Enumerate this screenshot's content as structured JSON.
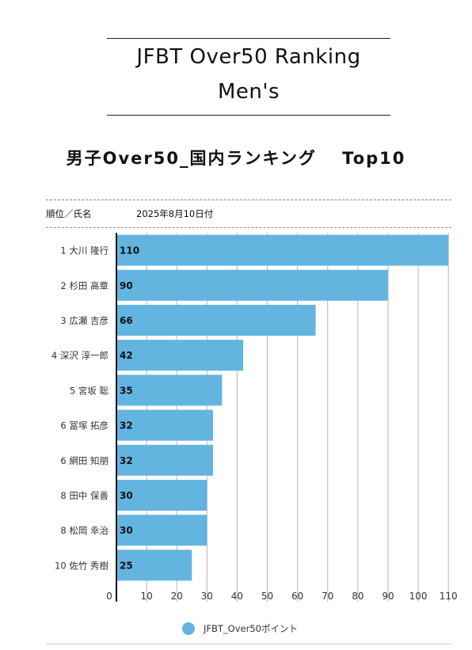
{
  "header": {
    "title_line1": "JFBT Over50 Ranking",
    "title_line2": "Men's",
    "subtitle": "男子Over50_国内ランキング　 Top10",
    "column_label": "順位／氏名",
    "date": "2025年8月10日付"
  },
  "legend": {
    "label": "JFBT_Over50ポイント"
  },
  "colors": {
    "bar": "#63b5e0",
    "accent": "#63b5e0"
  },
  "chart_data": {
    "type": "bar",
    "orientation": "horizontal",
    "categories": [
      "1 大川 隆行",
      "2 杉田 高章",
      "3 広瀬 吉彦",
      "4 深沢 淳一郎",
      "5 宮坂 聡",
      "6 冨塚 拓彦",
      "6 網田 知朋",
      "8 田中 保善",
      "8 松岡 幸治",
      "10 佐竹 秀樹"
    ],
    "series": [
      {
        "name": "JFBT_Over50ポイント",
        "values": [
          110,
          90,
          66,
          42,
          35,
          32,
          32,
          30,
          30,
          25
        ]
      }
    ],
    "x_ticks": [
      0,
      10,
      20,
      30,
      40,
      50,
      60,
      70,
      80,
      90,
      100,
      110
    ],
    "xlim": [
      0,
      111
    ],
    "grid": true,
    "data_labels": true,
    "legend_position": "bottom"
  }
}
